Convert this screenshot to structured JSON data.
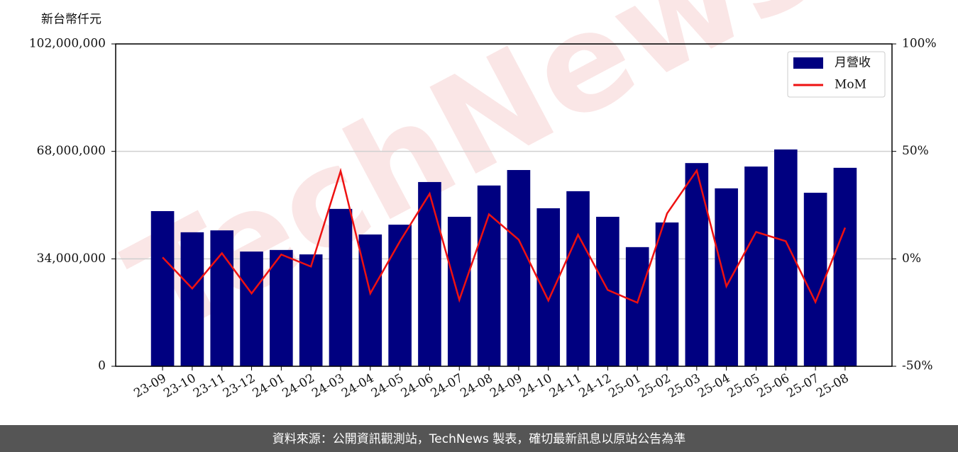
{
  "chart_data": {
    "type": "bar",
    "y_label": "新台幣仟元",
    "categories": [
      "23-09",
      "23-10",
      "23-11",
      "23-12",
      "24-01",
      "24-02",
      "24-03",
      "24-04",
      "24-05",
      "24-06",
      "24-07",
      "24-08",
      "24-09",
      "24-10",
      "24-11",
      "24-12",
      "25-01",
      "25-02",
      "25-03",
      "25-04",
      "25-05",
      "25-06",
      "25-07",
      "25-08"
    ],
    "series": [
      {
        "name": "月營收",
        "type": "bar",
        "color": "#000080",
        "values": [
          49100000,
          42400000,
          43000000,
          36300000,
          36800000,
          35400000,
          49800000,
          41700000,
          44800000,
          58300000,
          47300000,
          57200000,
          62100000,
          50000000,
          55400000,
          47300000,
          37700000,
          45500000,
          64300000,
          56300000,
          63200000,
          68600000,
          54900000,
          62800000
        ]
      },
      {
        "name": "MoM",
        "type": "line",
        "axis": "y2",
        "color": "#ee1111",
        "values": [
          0.7,
          -13.8,
          2.6,
          -16.1,
          2.0,
          -3.6,
          40.8,
          -16.1,
          8.2,
          30.3,
          -19.1,
          20.7,
          8.9,
          -19.4,
          11.2,
          -14.5,
          -20.4,
          21.1,
          41.1,
          -12.8,
          12.5,
          8.2,
          -20.1,
          14.5
        ]
      }
    ],
    "ylim": [
      0,
      102000000
    ],
    "yticks": [
      0,
      {
        "value": 34000000,
        "label": "34,000,000"
      },
      {
        "value": 68000000,
        "label": "68,000,000"
      },
      {
        "value": 102000000,
        "label": "102,000,000"
      }
    ],
    "y2lim": [
      -50,
      100
    ],
    "y2ticks": [
      {
        "value": -50,
        "label": "-50%"
      },
      {
        "value": 0,
        "label": "0%"
      },
      {
        "value": 50,
        "label": "50%"
      },
      {
        "value": 100,
        "label": "100%"
      }
    ],
    "grid": true,
    "legend": "upper right"
  },
  "watermark": "TechNews",
  "footer": "資料來源：公開資訊觀測站，TechNews 製表，確切最新訊息以原站公告為準"
}
